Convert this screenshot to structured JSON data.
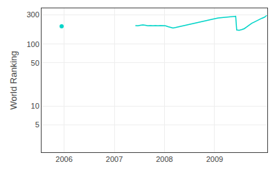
{
  "chart_data": {
    "type": "line",
    "ylabel": "World Ranking",
    "log": "y",
    "grid": true,
    "xlim": [
      2005.55,
      2010.05
    ],
    "xticks": [
      2006,
      2007,
      2008,
      2009
    ],
    "ylim": [
      1.8,
      380
    ],
    "yticks": [
      5,
      10,
      50,
      100,
      300
    ],
    "series": [
      {
        "type": "scatter",
        "marker": "circle",
        "color": "#00d4c8",
        "x": [
          2005.95
        ],
        "values": [
          195
        ]
      },
      {
        "type": "line",
        "line_style": "solid",
        "color": "#00d4c8",
        "x": [
          2007.42,
          2007.47,
          2007.52,
          2007.57,
          2007.62,
          2007.67,
          2007.72,
          2007.77,
          2007.82,
          2007.87,
          2007.92,
          2007.97,
          2008.02,
          2008.07,
          2008.12,
          2008.17,
          2008.22,
          2008.27,
          2008.32,
          2008.37,
          2008.42,
          2008.47,
          2008.52,
          2008.57,
          2008.62,
          2008.67,
          2008.72,
          2008.77,
          2008.82,
          2008.87,
          2008.92,
          2008.97,
          2009.02,
          2009.07,
          2009.12,
          2009.17,
          2009.22,
          2009.27,
          2009.32,
          2009.37,
          2009.42,
          2009.44,
          2009.49,
          2009.54,
          2009.59,
          2009.64,
          2009.69,
          2009.74,
          2009.79,
          2009.84,
          2009.89,
          2009.94,
          2009.99,
          2010.02,
          2010.04
        ],
        "values": [
          200,
          198,
          202,
          205,
          202,
          198,
          200,
          198,
          200,
          198,
          200,
          200,
          198,
          192,
          188,
          183,
          186,
          190,
          195,
          200,
          205,
          210,
          213,
          218,
          222,
          226,
          230,
          235,
          240,
          245,
          250,
          255,
          260,
          265,
          268,
          272,
          275,
          278,
          280,
          282,
          283,
          170,
          168,
          172,
          178,
          190,
          205,
          218,
          228,
          240,
          252,
          262,
          272,
          282,
          292
        ]
      }
    ]
  }
}
